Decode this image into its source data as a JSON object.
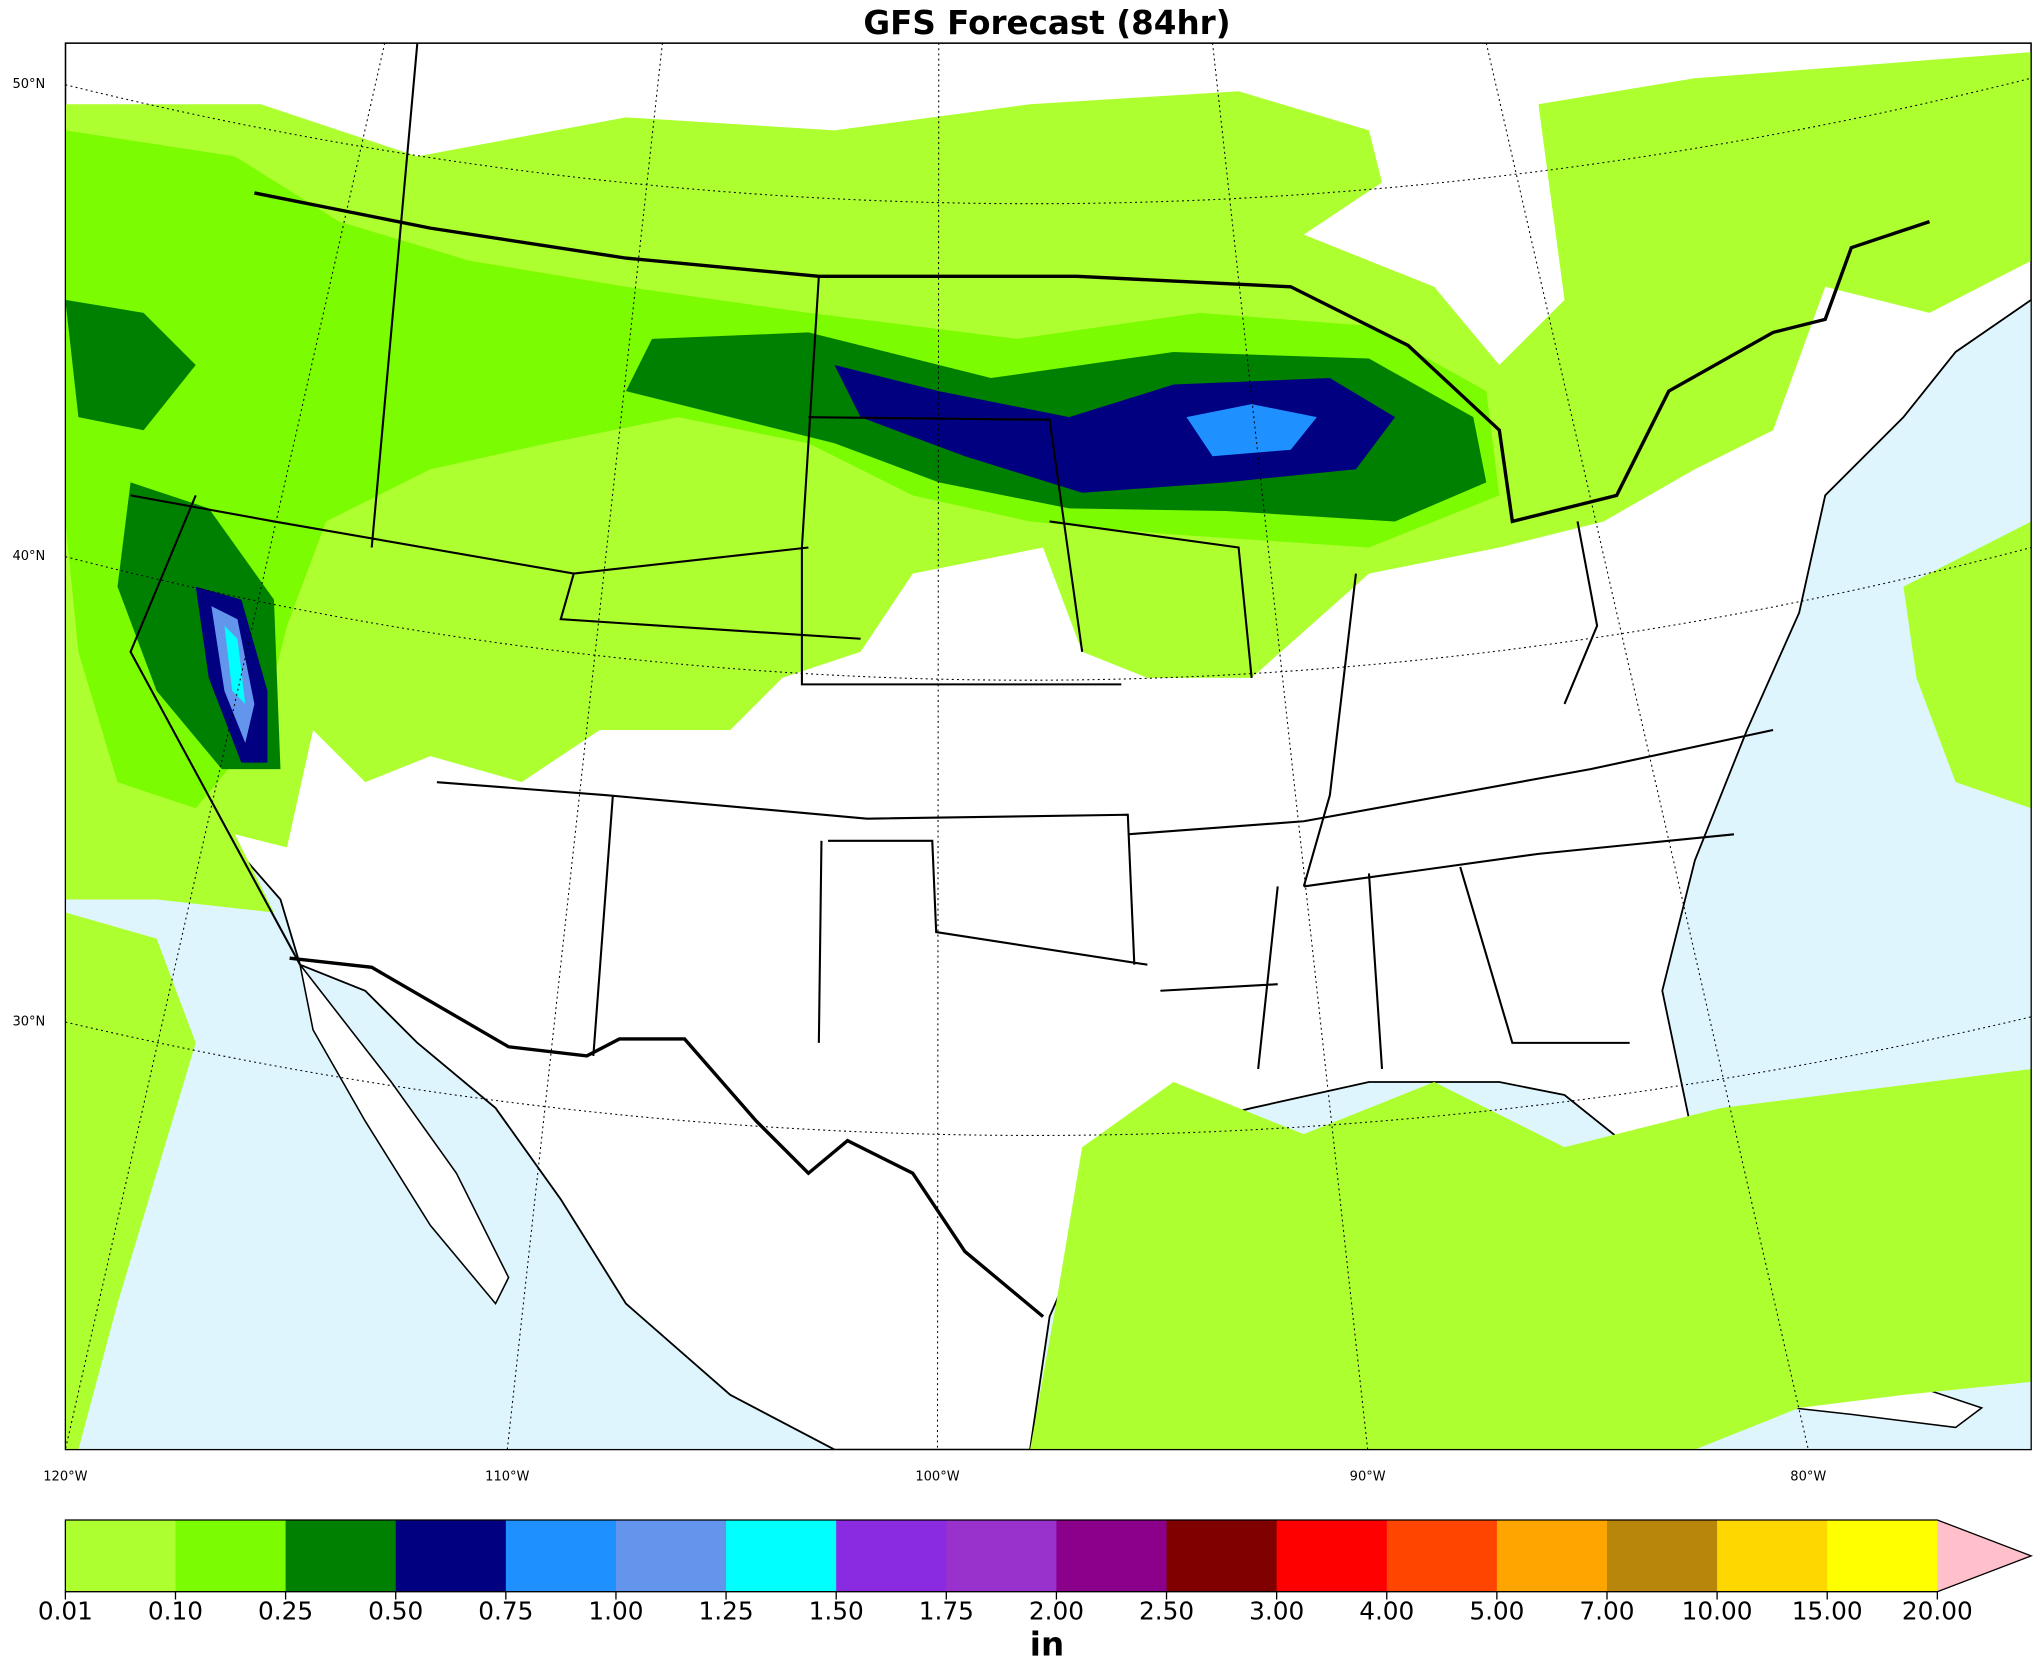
{
  "map": {
    "title": "GFS Forecast (84hr)",
    "lat_labels": [
      "50°N",
      "40°N",
      "30°N"
    ],
    "lon_labels": [
      "120°W",
      "110°W",
      "100°W",
      "90°W",
      "80°W"
    ]
  },
  "colorbar": {
    "ticks": [
      0.01,
      {
        "value": 0.1,
        "label": "0.10"
      },
      0.25,
      {
        "value": 0.5,
        "label": "0.50"
      },
      0.75,
      {
        "value": 1,
        "label": "1.00"
      },
      1.25,
      {
        "value": 1.5,
        "label": "1.50"
      },
      1.75,
      {
        "value": 2,
        "label": "2.00"
      },
      {
        "value": 2.5,
        "label": "2.50"
      },
      {
        "value": 3,
        "label": "3.00"
      },
      {
        "value": 4,
        "label": "4.00"
      },
      {
        "value": 5,
        "label": "5.00"
      },
      {
        "value": 7,
        "label": "7.00"
      },
      {
        "value": 10,
        "label": "10.00"
      },
      {
        "value": 15,
        "label": "15.00"
      },
      {
        "value": 20,
        "label": "20.00"
      }
    ],
    "colors": [
      "#adff2f",
      "#7cfc00",
      "#008000",
      "#000080",
      "#1e90ff",
      "#6495ed",
      "#00ffff",
      "#8a2be2",
      "#9932cc",
      "#8b008b",
      "#800000",
      "#ff0000",
      "#ff4500",
      "#ffa500",
      "#b8860b",
      "#ffd700",
      "#ffff00"
    ],
    "extend_color": "#ffc0cb",
    "label": "in"
  }
}
